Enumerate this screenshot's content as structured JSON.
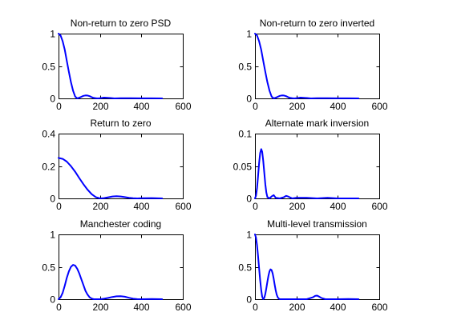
{
  "figure": {
    "background": "#ffffff",
    "line_color": "#0000ff"
  },
  "chart_data": [
    {
      "type": "line",
      "title": "Non-return to zero PSD",
      "xlim": [
        0,
        600
      ],
      "ylim": [
        0,
        1
      ],
      "xticks": [
        0,
        200,
        400,
        600
      ],
      "xtick_labels": [
        "0",
        "200",
        "400",
        "600"
      ],
      "yticks": [
        0,
        0.5,
        1
      ],
      "ytick_labels": [
        "0",
        "0.5",
        "1"
      ],
      "grid": false,
      "series": [
        {
          "x": [
            0,
            10,
            20,
            30,
            40,
            50,
            60,
            70,
            80,
            90,
            100,
            110,
            120,
            130,
            140,
            150,
            160,
            170,
            180,
            190,
            200,
            220,
            250,
            270,
            300,
            350,
            400,
            450,
            500
          ],
          "y": [
            1.0,
            0.97,
            0.88,
            0.75,
            0.58,
            0.41,
            0.25,
            0.12,
            0.03,
            0.0,
            0.01,
            0.025,
            0.04,
            0.046,
            0.044,
            0.035,
            0.02,
            0.008,
            0.002,
            0.0,
            0.004,
            0.012,
            0.006,
            0.0,
            0.004,
            0.002,
            0.001,
            0.001,
            0.0
          ]
        }
      ]
    },
    {
      "type": "line",
      "title": "Non-return to zero inverted",
      "xlim": [
        0,
        600
      ],
      "ylim": [
        0,
        1
      ],
      "xticks": [
        0,
        200,
        400,
        600
      ],
      "xtick_labels": [
        "0",
        "200",
        "400",
        "600"
      ],
      "yticks": [
        0,
        0.5,
        1
      ],
      "ytick_labels": [
        "0",
        "0.5",
        "1"
      ],
      "grid": false,
      "series": [
        {
          "x": [
            0,
            10,
            20,
            30,
            40,
            50,
            60,
            70,
            80,
            90,
            100,
            110,
            120,
            130,
            140,
            150,
            160,
            170,
            180,
            190,
            200,
            220,
            250,
            270,
            300,
            350,
            400,
            450,
            500
          ],
          "y": [
            1.0,
            0.97,
            0.88,
            0.75,
            0.58,
            0.41,
            0.25,
            0.12,
            0.03,
            0.0,
            0.01,
            0.025,
            0.04,
            0.046,
            0.044,
            0.035,
            0.02,
            0.008,
            0.002,
            0.0,
            0.004,
            0.012,
            0.006,
            0.0,
            0.004,
            0.002,
            0.001,
            0.001,
            0.0
          ]
        }
      ]
    },
    {
      "type": "line",
      "title": "Return to zero",
      "xlim": [
        0,
        600
      ],
      "ylim": [
        0,
        0.4
      ],
      "xticks": [
        0,
        200,
        400,
        600
      ],
      "xtick_labels": [
        "0",
        "200",
        "400",
        "600"
      ],
      "yticks": [
        0,
        0.2,
        0.4
      ],
      "ytick_labels": [
        "0",
        "0.2",
        "0.4"
      ],
      "grid": false,
      "series": [
        {
          "x": [
            0,
            20,
            40,
            60,
            80,
            100,
            120,
            140,
            160,
            180,
            200,
            220,
            240,
            260,
            280,
            300,
            320,
            340,
            360,
            380,
            400,
            450,
            500
          ],
          "y": [
            0.25,
            0.244,
            0.227,
            0.199,
            0.165,
            0.126,
            0.088,
            0.054,
            0.026,
            0.008,
            0.0,
            0.002,
            0.007,
            0.012,
            0.014,
            0.012,
            0.008,
            0.004,
            0.001,
            0.0,
            0.001,
            0.002,
            0.0
          ]
        }
      ]
    },
    {
      "type": "line",
      "title": "Alternate mark inversion",
      "xlim": [
        0,
        600
      ],
      "ylim": [
        0,
        0.1
      ],
      "xticks": [
        0,
        200,
        400,
        600
      ],
      "xtick_labels": [
        "0",
        "200",
        "400",
        "600"
      ],
      "yticks": [
        0,
        0.05,
        0.1
      ],
      "ytick_labels": [
        "0",
        "0.05",
        "0.1"
      ],
      "grid": false,
      "series": [
        {
          "x": [
            0,
            5,
            10,
            15,
            20,
            25,
            30,
            35,
            40,
            45,
            50,
            55,
            60,
            70,
            80,
            90,
            100,
            120,
            140,
            150,
            160,
            180,
            200,
            250,
            300,
            350,
            400,
            450,
            500
          ],
          "y": [
            0.0,
            0.004,
            0.016,
            0.035,
            0.055,
            0.07,
            0.076,
            0.072,
            0.058,
            0.04,
            0.022,
            0.009,
            0.002,
            0.0,
            0.003,
            0.005,
            0.001,
            0.0,
            0.002,
            0.004,
            0.003,
            0.0,
            0.001,
            0.001,
            0.0,
            0.001,
            0.0,
            0.0,
            0.0
          ]
        }
      ]
    },
    {
      "type": "line",
      "title": "Manchester coding",
      "xlim": [
        0,
        600
      ],
      "ylim": [
        0,
        1
      ],
      "xticks": [
        0,
        200,
        400,
        600
      ],
      "xtick_labels": [
        "0",
        "200",
        "400",
        "600"
      ],
      "yticks": [
        0,
        0.5,
        1
      ],
      "ytick_labels": [
        "0",
        "0.5",
        "1"
      ],
      "grid": false,
      "series": [
        {
          "x": [
            0,
            10,
            20,
            30,
            40,
            50,
            60,
            70,
            80,
            90,
            100,
            110,
            120,
            130,
            140,
            150,
            160,
            170,
            180,
            190,
            200,
            220,
            240,
            260,
            280,
            300,
            320,
            340,
            360,
            380,
            400,
            450,
            500
          ],
          "y": [
            0.0,
            0.03,
            0.1,
            0.21,
            0.33,
            0.43,
            0.5,
            0.53,
            0.52,
            0.47,
            0.4,
            0.31,
            0.22,
            0.13,
            0.07,
            0.03,
            0.01,
            0.0,
            0.0,
            0.0,
            0.0,
            0.007,
            0.02,
            0.035,
            0.045,
            0.046,
            0.038,
            0.022,
            0.008,
            0.001,
            0.0,
            0.004,
            0.0
          ]
        }
      ]
    },
    {
      "type": "line",
      "title": "Multi-level transmission",
      "xlim": [
        0,
        600
      ],
      "ylim": [
        0,
        1
      ],
      "xticks": [
        0,
        200,
        400,
        600
      ],
      "xtick_labels": [
        "0",
        "200",
        "400",
        "600"
      ],
      "yticks": [
        0,
        0.5,
        1
      ],
      "ytick_labels": [
        "0",
        "0.5",
        "1"
      ],
      "grid": false,
      "series": [
        {
          "x": [
            0,
            5,
            10,
            15,
            20,
            25,
            30,
            35,
            40,
            45,
            50,
            55,
            60,
            65,
            70,
            75,
            80,
            85,
            90,
            95,
            100,
            105,
            110,
            115,
            120,
            125,
            130,
            140,
            150,
            170,
            200,
            250,
            280,
            290,
            300,
            310,
            320,
            340,
            400,
            450,
            500
          ],
          "y": [
            1.0,
            0.95,
            0.83,
            0.66,
            0.47,
            0.29,
            0.14,
            0.04,
            0.0,
            0.02,
            0.08,
            0.17,
            0.27,
            0.36,
            0.43,
            0.46,
            0.45,
            0.4,
            0.32,
            0.23,
            0.14,
            0.07,
            0.03,
            0.01,
            0.0,
            0.0,
            0.0,
            0.0,
            0.0,
            0.0,
            0.0,
            0.0,
            0.03,
            0.05,
            0.055,
            0.04,
            0.02,
            0.0,
            0.0,
            0.004,
            0.0
          ]
        }
      ]
    }
  ]
}
